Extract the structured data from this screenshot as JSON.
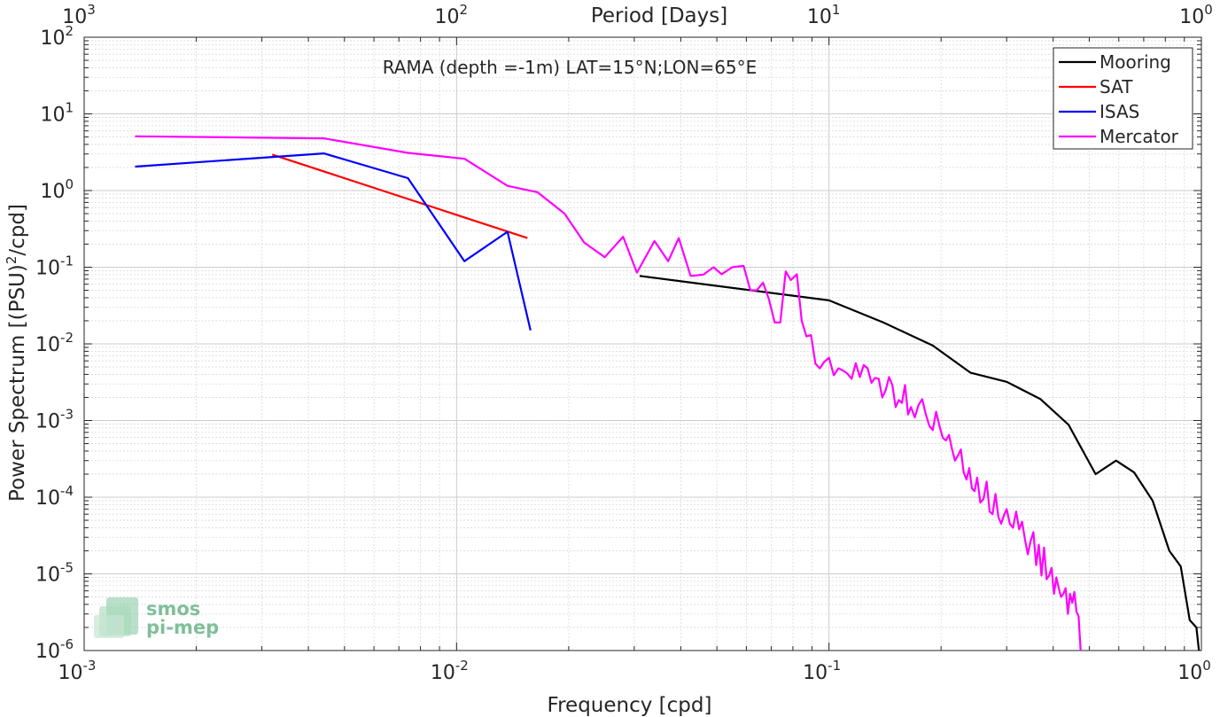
{
  "chart_data": {
    "type": "line",
    "title": "RAMA (depth =-1m) LAT=15°N;LON=65°E",
    "xlabel": "Frequency [cpd]",
    "ylabel": "Power Spectrum [(PSU)",
    "ylabel_sup": "2",
    "ylabel_suffix": "/cpd]",
    "top_xlabel": "Period [Days]",
    "x_scale": "log",
    "y_scale": "log",
    "xlim": [
      0.001,
      1
    ],
    "ylim": [
      1e-06,
      100
    ],
    "grid": true,
    "minor_grid": true,
    "legend_position": "top-right",
    "x_ticks": [
      {
        "value": 0.001,
        "base": "10",
        "exp": "-3"
      },
      {
        "value": 0.01,
        "base": "10",
        "exp": "-2"
      },
      {
        "value": 0.1,
        "base": "10",
        "exp": "-1"
      },
      {
        "value": 1,
        "base": "10",
        "exp": "0"
      }
    ],
    "top_ticks": [
      {
        "value": 0.001,
        "base": "10",
        "exp": "3"
      },
      {
        "value": 0.01,
        "base": "10",
        "exp": "2"
      },
      {
        "value": 0.1,
        "base": "10",
        "exp": "1"
      },
      {
        "value": 1,
        "base": "10",
        "exp": "0"
      }
    ],
    "y_ticks": [
      {
        "value": 1e-06,
        "base": "10",
        "exp": "-6"
      },
      {
        "value": 1e-05,
        "base": "10",
        "exp": "-5"
      },
      {
        "value": 0.0001,
        "base": "10",
        "exp": "-4"
      },
      {
        "value": 0.001,
        "base": "10",
        "exp": "-3"
      },
      {
        "value": 0.01,
        "base": "10",
        "exp": "-2"
      },
      {
        "value": 0.1,
        "base": "10",
        "exp": "-1"
      },
      {
        "value": 1,
        "base": "10",
        "exp": "0"
      },
      {
        "value": 10,
        "base": "10",
        "exp": "1"
      },
      {
        "value": 100,
        "base": "10",
        "exp": "2"
      }
    ],
    "series": [
      {
        "name": "Mooring",
        "color": "#000000",
        "x": [
          0.031,
          0.1,
          0.14,
          0.19,
          0.24,
          0.3,
          0.37,
          0.44,
          0.52,
          0.59,
          0.66,
          0.74,
          0.82,
          0.88,
          0.93,
          0.97,
          0.985
        ],
        "y": [
          0.077,
          0.037,
          0.019,
          0.0095,
          0.0042,
          0.0032,
          0.0019,
          0.00088,
          0.0002,
          0.0003,
          0.00021,
          9e-05,
          2e-05,
          1.25e-05,
          2.5e-06,
          2e-06,
          1e-06
        ]
      },
      {
        "name": "SAT",
        "color": "#ff0000",
        "x": [
          0.0032,
          0.0155
        ],
        "y": [
          2.95,
          0.24
        ]
      },
      {
        "name": "ISAS",
        "color": "#0000ff",
        "x": [
          0.00137,
          0.0044,
          0.0074,
          0.0105,
          0.0137,
          0.0158
        ],
        "y": [
          2.05,
          3.05,
          1.45,
          0.12,
          0.29,
          0.015
        ]
      },
      {
        "name": "Mercator",
        "color": "#ff00ff",
        "x": [
          0.00137,
          0.0044,
          0.0074,
          0.0105,
          0.0137,
          0.0165,
          0.0195,
          0.022,
          0.025,
          0.028,
          0.0305,
          0.034,
          0.037,
          0.0395,
          0.0425,
          0.046,
          0.049,
          0.0515,
          0.055,
          0.059,
          0.0615,
          0.064,
          0.0665,
          0.069,
          0.0715,
          0.074,
          0.0765,
          0.079,
          0.082,
          0.0845,
          0.087,
          0.0895,
          0.092,
          0.0945,
          0.097,
          0.1,
          0.103,
          0.106,
          0.109,
          0.112,
          0.115,
          0.118,
          0.121,
          0.124,
          0.127,
          0.13,
          0.133,
          0.136,
          0.139,
          0.142,
          0.145,
          0.148,
          0.151,
          0.154,
          0.157,
          0.16,
          0.163,
          0.166,
          0.17,
          0.174,
          0.178,
          0.182,
          0.186,
          0.19,
          0.194,
          0.198,
          0.202,
          0.206,
          0.21,
          0.214,
          0.218,
          0.222,
          0.226,
          0.23,
          0.234,
          0.238,
          0.242,
          0.246,
          0.25,
          0.255,
          0.26,
          0.265,
          0.27,
          0.275,
          0.28,
          0.285,
          0.29,
          0.295,
          0.3,
          0.306,
          0.312,
          0.318,
          0.324,
          0.33,
          0.336,
          0.342,
          0.348,
          0.354,
          0.36,
          0.366,
          0.372,
          0.378,
          0.384,
          0.39,
          0.396,
          0.402,
          0.408,
          0.414,
          0.42,
          0.426,
          0.432,
          0.438,
          0.444,
          0.45,
          0.456,
          0.462,
          0.468,
          0.474
        ],
        "y": [
          5.1,
          4.8,
          3.1,
          2.6,
          1.15,
          0.95,
          0.5,
          0.21,
          0.135,
          0.25,
          0.085,
          0.22,
          0.12,
          0.24,
          0.077,
          0.08,
          0.1,
          0.081,
          0.1,
          0.104,
          0.05,
          0.05,
          0.063,
          0.038,
          0.019,
          0.019,
          0.088,
          0.068,
          0.081,
          0.02,
          0.0125,
          0.013,
          0.0055,
          0.0048,
          0.0058,
          0.0066,
          0.0039,
          0.0048,
          0.0045,
          0.0041,
          0.0035,
          0.0056,
          0.0037,
          0.0053,
          0.0048,
          0.0031,
          0.0036,
          0.0035,
          0.002,
          0.0025,
          0.0037,
          0.0029,
          0.0015,
          0.00185,
          0.0017,
          0.0029,
          0.0012,
          0.0015,
          0.0011,
          0.0016,
          0.0019,
          0.0012,
          0.00085,
          0.00075,
          0.0013,
          0.00085,
          0.0006,
          0.00055,
          0.00065,
          0.00042,
          0.0003,
          0.00035,
          0.00042,
          0.00021,
          0.00017,
          0.00024,
          0.00013,
          0.00012,
          0.00018,
          8.5e-05,
          9.5e-05,
          0.00016,
          6.5e-05,
          6e-05,
          0.00011,
          5.5e-05,
          4.5e-05,
          5.8e-05,
          7e-05,
          4.5e-05,
          4e-05,
          6.5e-05,
          3.8e-05,
          4.8e-05,
          2.8e-05,
          1.8e-05,
          2.7e-05,
          3.5e-05,
          1.3e-05,
          2.4e-05,
          9.5e-06,
          2.2e-05,
          8.5e-06,
          9.5e-06,
          1.2e-05,
          5.5e-06,
          9e-06,
          6.5e-06,
          5e-06,
          5.5e-06,
          6.5e-06,
          3e-06,
          5.5e-06,
          4.2e-06,
          5.8e-06,
          3.2e-06,
          2.8e-06,
          1e-06
        ]
      }
    ]
  },
  "logo": {
    "line1": "smos",
    "line2": "pi-mep"
  }
}
